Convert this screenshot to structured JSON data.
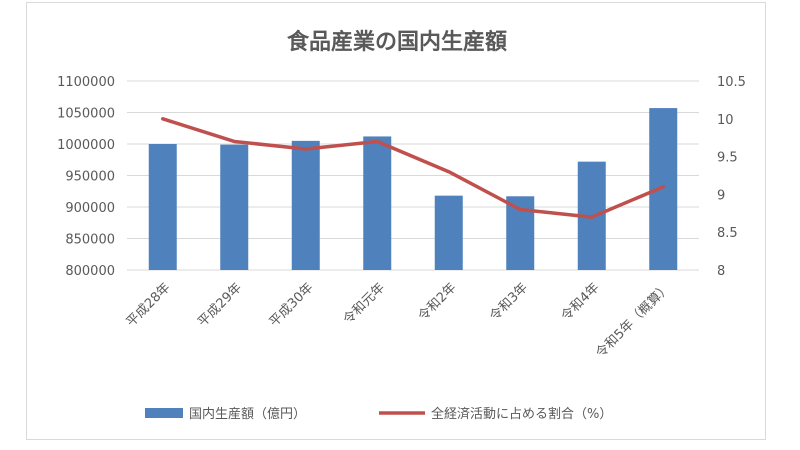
{
  "chart_data": {
    "type": "bar",
    "title": "食品産業の国内生産額",
    "categories": [
      "平成28年",
      "平成29年",
      "平成30年",
      "令和元年",
      "令和2年",
      "令和3年",
      "令和4年",
      "令和5年（概算）"
    ],
    "series": [
      {
        "name": "国内生産額（億円）",
        "type": "bar",
        "axis": "left",
        "color": "#4f81bd",
        "values": [
          1000000,
          999000,
          1005000,
          1012000,
          918000,
          917000,
          972000,
          1057000
        ]
      },
      {
        "name": "全経済活動に占める割合（%）",
        "type": "line",
        "axis": "right",
        "color": "#c0504d",
        "values": [
          10.0,
          9.7,
          9.6,
          9.7,
          9.3,
          8.8,
          8.7,
          9.1
        ]
      }
    ],
    "left_axis": {
      "ylim": [
        800000,
        1100000
      ],
      "ticks": [
        "800000",
        "850000",
        "900000",
        "950000",
        "1000000",
        "1050000",
        "1100000"
      ],
      "tick_values": [
        800000,
        850000,
        900000,
        950000,
        1000000,
        1050000,
        1100000
      ]
    },
    "right_axis": {
      "ylim": [
        8,
        10.5
      ],
      "ticks": [
        "8",
        "8.5",
        "9",
        "9.5",
        "10",
        "10.5"
      ],
      "tick_values": [
        8,
        8.5,
        9,
        9.5,
        10,
        10.5
      ]
    },
    "grid": true,
    "legend_position": "bottom"
  }
}
